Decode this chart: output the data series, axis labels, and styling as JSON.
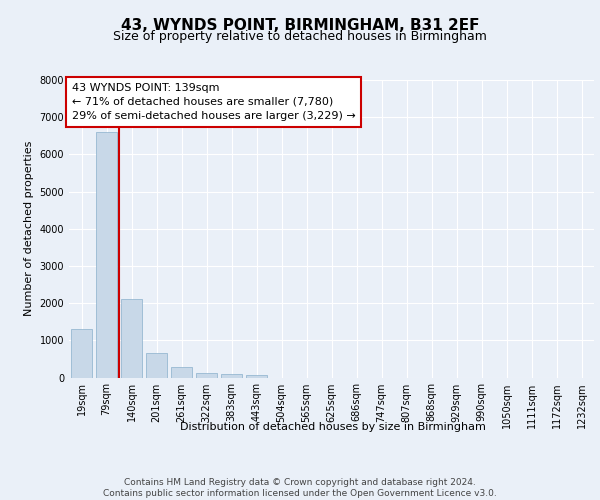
{
  "title": "43, WYNDS POINT, BIRMINGHAM, B31 2EF",
  "subtitle": "Size of property relative to detached houses in Birmingham",
  "xlabel": "Distribution of detached houses by size in Birmingham",
  "ylabel": "Number of detached properties",
  "categories": [
    "19sqm",
    "79sqm",
    "140sqm",
    "201sqm",
    "261sqm",
    "322sqm",
    "383sqm",
    "443sqm",
    "504sqm",
    "565sqm",
    "625sqm",
    "686sqm",
    "747sqm",
    "807sqm",
    "868sqm",
    "929sqm",
    "990sqm",
    "1050sqm",
    "1111sqm",
    "1172sqm",
    "1232sqm"
  ],
  "values": [
    1300,
    6600,
    2100,
    650,
    280,
    120,
    90,
    60,
    0,
    0,
    0,
    0,
    0,
    0,
    0,
    0,
    0,
    0,
    0,
    0,
    0
  ],
  "bar_color": "#c8d8e8",
  "bar_edge_color": "#8ab0cc",
  "vline_x_index": 2,
  "vline_color": "#cc0000",
  "annotation_text": "43 WYNDS POINT: 139sqm\n← 71% of detached houses are smaller (7,780)\n29% of semi-detached houses are larger (3,229) →",
  "annotation_box_color": "#cc0000",
  "annotation_text_color": "#000000",
  "ylim": [
    0,
    8000
  ],
  "yticks": [
    0,
    1000,
    2000,
    3000,
    4000,
    5000,
    6000,
    7000,
    8000
  ],
  "footer_text": "Contains HM Land Registry data © Crown copyright and database right 2024.\nContains public sector information licensed under the Open Government Licence v3.0.",
  "background_color": "#eaf0f8",
  "plot_background_color": "#eaf0f8",
  "grid_color": "#ffffff",
  "title_fontsize": 11,
  "subtitle_fontsize": 9,
  "axis_label_fontsize": 8,
  "tick_fontsize": 7,
  "annotation_fontsize": 8,
  "footer_fontsize": 6.5
}
